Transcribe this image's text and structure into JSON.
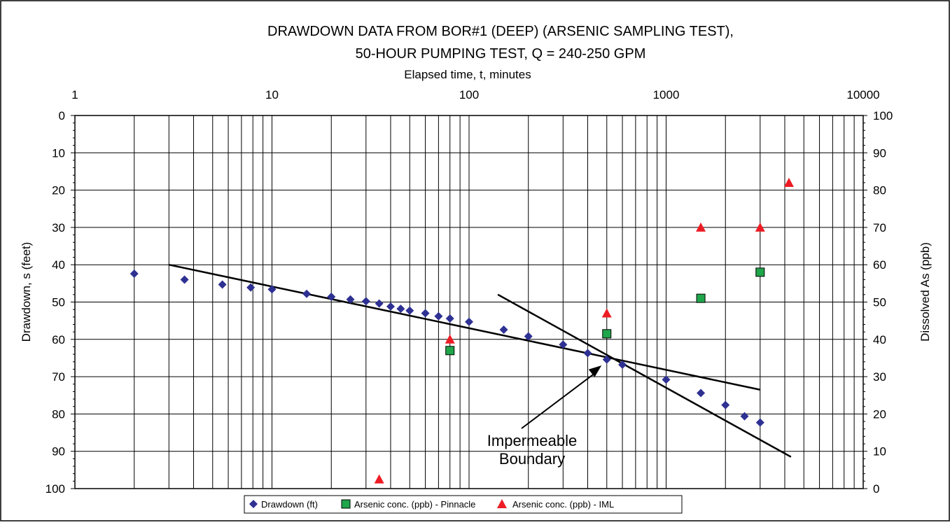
{
  "chart_data": {
    "type": "scatter",
    "title": "DRAWDOWN DATA FROM BOR#1 (DEEP) (ARSENIC SAMPLING TEST),",
    "subtitle": "50-HOUR PUMPING TEST, Q = 240-250 GPM",
    "xlabel": "Elapsed time, t, minutes",
    "ylabel": "Drawdown, s (feet)",
    "y2label": "Dissolved As (ppb)",
    "x_scale": "log",
    "xlim": [
      1,
      10000
    ],
    "ylim": [
      0,
      100
    ],
    "y_inverted": true,
    "y2lim": [
      0,
      100
    ],
    "x_ticks": [
      "1",
      "10",
      "100",
      "1000",
      "10000"
    ],
    "y_ticks": [
      "0",
      "10",
      "20",
      "30",
      "40",
      "50",
      "60",
      "70",
      "80",
      "90",
      "100"
    ],
    "y2_ticks": [
      "100",
      "90",
      "80",
      "70",
      "60",
      "50",
      "40",
      "30",
      "20",
      "10",
      "0"
    ],
    "grid": true,
    "legend_position": "bottom",
    "series": [
      {
        "name": "Drawdown (ft)",
        "axis": "left",
        "marker": "diamond",
        "color": "#2E3192",
        "x": [
          2,
          3.6,
          5.6,
          7.8,
          10,
          15,
          20,
          25,
          30,
          35,
          40,
          45,
          50,
          60,
          70,
          80,
          100,
          150,
          200,
          300,
          400,
          500,
          600,
          1000,
          1500,
          2000,
          2500,
          3000
        ],
        "y": [
          42.4,
          44.0,
          45.3,
          46.1,
          46.6,
          47.8,
          48.6,
          49.3,
          49.8,
          50.4,
          51.2,
          51.8,
          52.3,
          53.0,
          53.8,
          54.4,
          55.3,
          57.4,
          59.2,
          61.4,
          63.7,
          65.4,
          66.8,
          70.8,
          74.4,
          77.6,
          80.6,
          82.3
        ]
      },
      {
        "name": "Arsenic conc. (ppb) - Pinnacle",
        "axis": "right",
        "marker": "square",
        "color": "#1FA54A",
        "x": [
          80,
          500,
          1500,
          3000
        ],
        "y": [
          37,
          41.5,
          51,
          58
        ]
      },
      {
        "name": "Arsenic conc. (ppb) - IML",
        "axis": "right",
        "marker": "triangle",
        "color": "#ED1C24",
        "x": [
          35,
          80,
          500,
          1500,
          3000,
          4200
        ],
        "y": [
          2.5,
          40,
          47,
          70,
          70,
          82
        ]
      }
    ],
    "trend_lines": [
      {
        "x": [
          3,
          3000
        ],
        "y": [
          40,
          73.5
        ]
      },
      {
        "x": [
          140,
          4300
        ],
        "y": [
          48,
          91.5
        ]
      }
    ],
    "annotation": {
      "lines": [
        "Impermeable",
        "Boundary"
      ],
      "arrow_to": {
        "x": 470,
        "y": 67
      }
    }
  },
  "colors": {
    "drawdown": "#2E3192",
    "pinnacle": "#1FA54A",
    "iml": "#ED1C24",
    "grid": "#000000"
  }
}
